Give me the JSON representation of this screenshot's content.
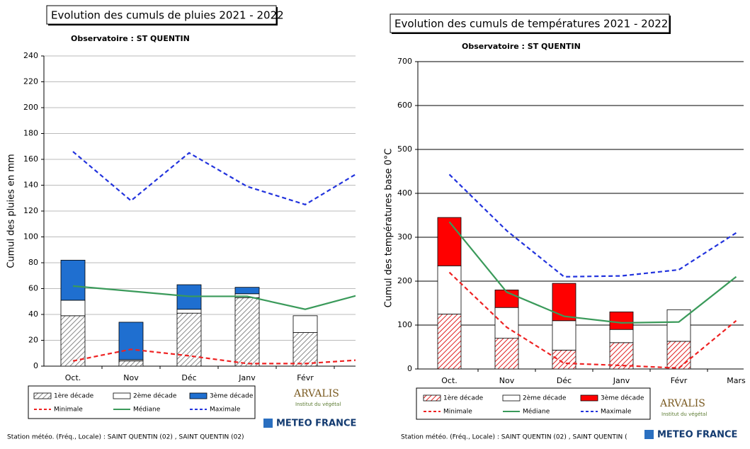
{
  "chart_data": [
    {
      "type": "bar",
      "stacked": true,
      "title": "Evolution des cumuls de pluies 2021 - 2022",
      "subtitle": "Observatoire : ST QUENTIN",
      "ylabel": "Cumul des pluies en mm",
      "categories": [
        "Oct.",
        "Nov",
        "Déc",
        "Janv",
        "Févr",
        null
      ],
      "ylim": [
        0,
        240
      ],
      "yticks": [
        0,
        20,
        40,
        60,
        80,
        100,
        120,
        140,
        160,
        180,
        200,
        220,
        240
      ],
      "grid": true,
      "grid_color": "#bbbbbb",
      "series": [
        {
          "name": "1ère décade",
          "type": "bar",
          "pattern": "hatch",
          "color": "#888888",
          "values": [
            39,
            4,
            41,
            53,
            26,
            null
          ]
        },
        {
          "name": "2ème décade",
          "type": "bar",
          "color": "#ffffff",
          "values": [
            12,
            1,
            3,
            3,
            13,
            null
          ]
        },
        {
          "name": "3ème décade",
          "type": "bar",
          "color": "#1f6fd0",
          "values": [
            31,
            29,
            19,
            5,
            0,
            null
          ]
        },
        {
          "name": "Minimale",
          "type": "line",
          "dash": true,
          "color": "#ee2222",
          "values": [
            4,
            13,
            8,
            2,
            2,
            5
          ]
        },
        {
          "name": "Médiane",
          "type": "line",
          "color": "#3a9a5a",
          "values": [
            62,
            58,
            54,
            54,
            44,
            56
          ]
        },
        {
          "name": "Maximale",
          "type": "line",
          "dash": true,
          "color": "#2233dd",
          "values": [
            166,
            128,
            165,
            139,
            125,
            152
          ]
        }
      ],
      "logos": [
        "ARVALIS",
        "Institut du végétal",
        "METEO FRANCE"
      ],
      "source": "Station météo. (Fréq., Locale) : SAINT QUENTIN (02) , SAINT QUENTIN (02)"
    },
    {
      "type": "bar",
      "stacked": true,
      "title": "Evolution des cumuls de températures 2021 - 2022",
      "subtitle": "Observatoire : ST QUENTIN",
      "ylabel": "Cumul des températures base 0°C",
      "categories": [
        "Oct.",
        "Nov",
        "Déc",
        "Janv",
        "Févr",
        "Mars"
      ],
      "ylim": [
        0,
        700
      ],
      "yticks": [
        0,
        100,
        200,
        300,
        400,
        500,
        600,
        700
      ],
      "grid": true,
      "grid_color": "#000000",
      "series": [
        {
          "name": "1ère décade",
          "type": "bar",
          "pattern": "hatch",
          "color": "#e02020",
          "values": [
            125,
            70,
            43,
            60,
            63,
            null
          ]
        },
        {
          "name": "2ème décade",
          "type": "bar",
          "color": "#ffffff",
          "values": [
            110,
            70,
            67,
            30,
            72,
            null
          ]
        },
        {
          "name": "3ème décade",
          "type": "bar",
          "color": "#ff0000",
          "values": [
            110,
            40,
            85,
            40,
            0,
            null
          ]
        },
        {
          "name": "Minimale",
          "type": "line",
          "dash": true,
          "color": "#ee2222",
          "values": [
            220,
            95,
            13,
            8,
            2,
            110
          ]
        },
        {
          "name": "Médiane",
          "type": "line",
          "color": "#3a9a5a",
          "values": [
            335,
            175,
            120,
            105,
            107,
            210
          ]
        },
        {
          "name": "Maximale",
          "type": "line",
          "dash": true,
          "color": "#2233dd",
          "values": [
            443,
            315,
            210,
            212,
            226,
            310
          ]
        }
      ],
      "logos": [
        "ARVALIS",
        "Institut du végétal",
        "METEO FRANCE"
      ],
      "source": "Station météo. (Fréq., Locale) : SAINT QUENTIN (02) , SAINT QUENTIN ("
    }
  ]
}
